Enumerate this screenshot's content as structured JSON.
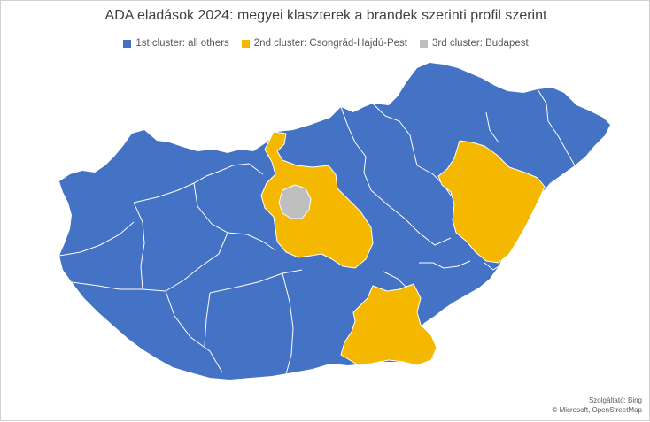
{
  "title": "ADA eladások 2024: megyei klaszterek a brandek szerinti profil szerint",
  "legend": [
    {
      "label": "1st cluster: all others",
      "color": "#4472C4"
    },
    {
      "label": "2nd cluster: Csongrád-Hajdú-Pest",
      "color": "#F5B800"
    },
    {
      "label": "3rd cluster: Budapest",
      "color": "#BFBFBF"
    }
  ],
  "credit": {
    "line1": "Szolgáltató: Bing",
    "line2": "© Microsoft, OpenStreetMap"
  }
}
